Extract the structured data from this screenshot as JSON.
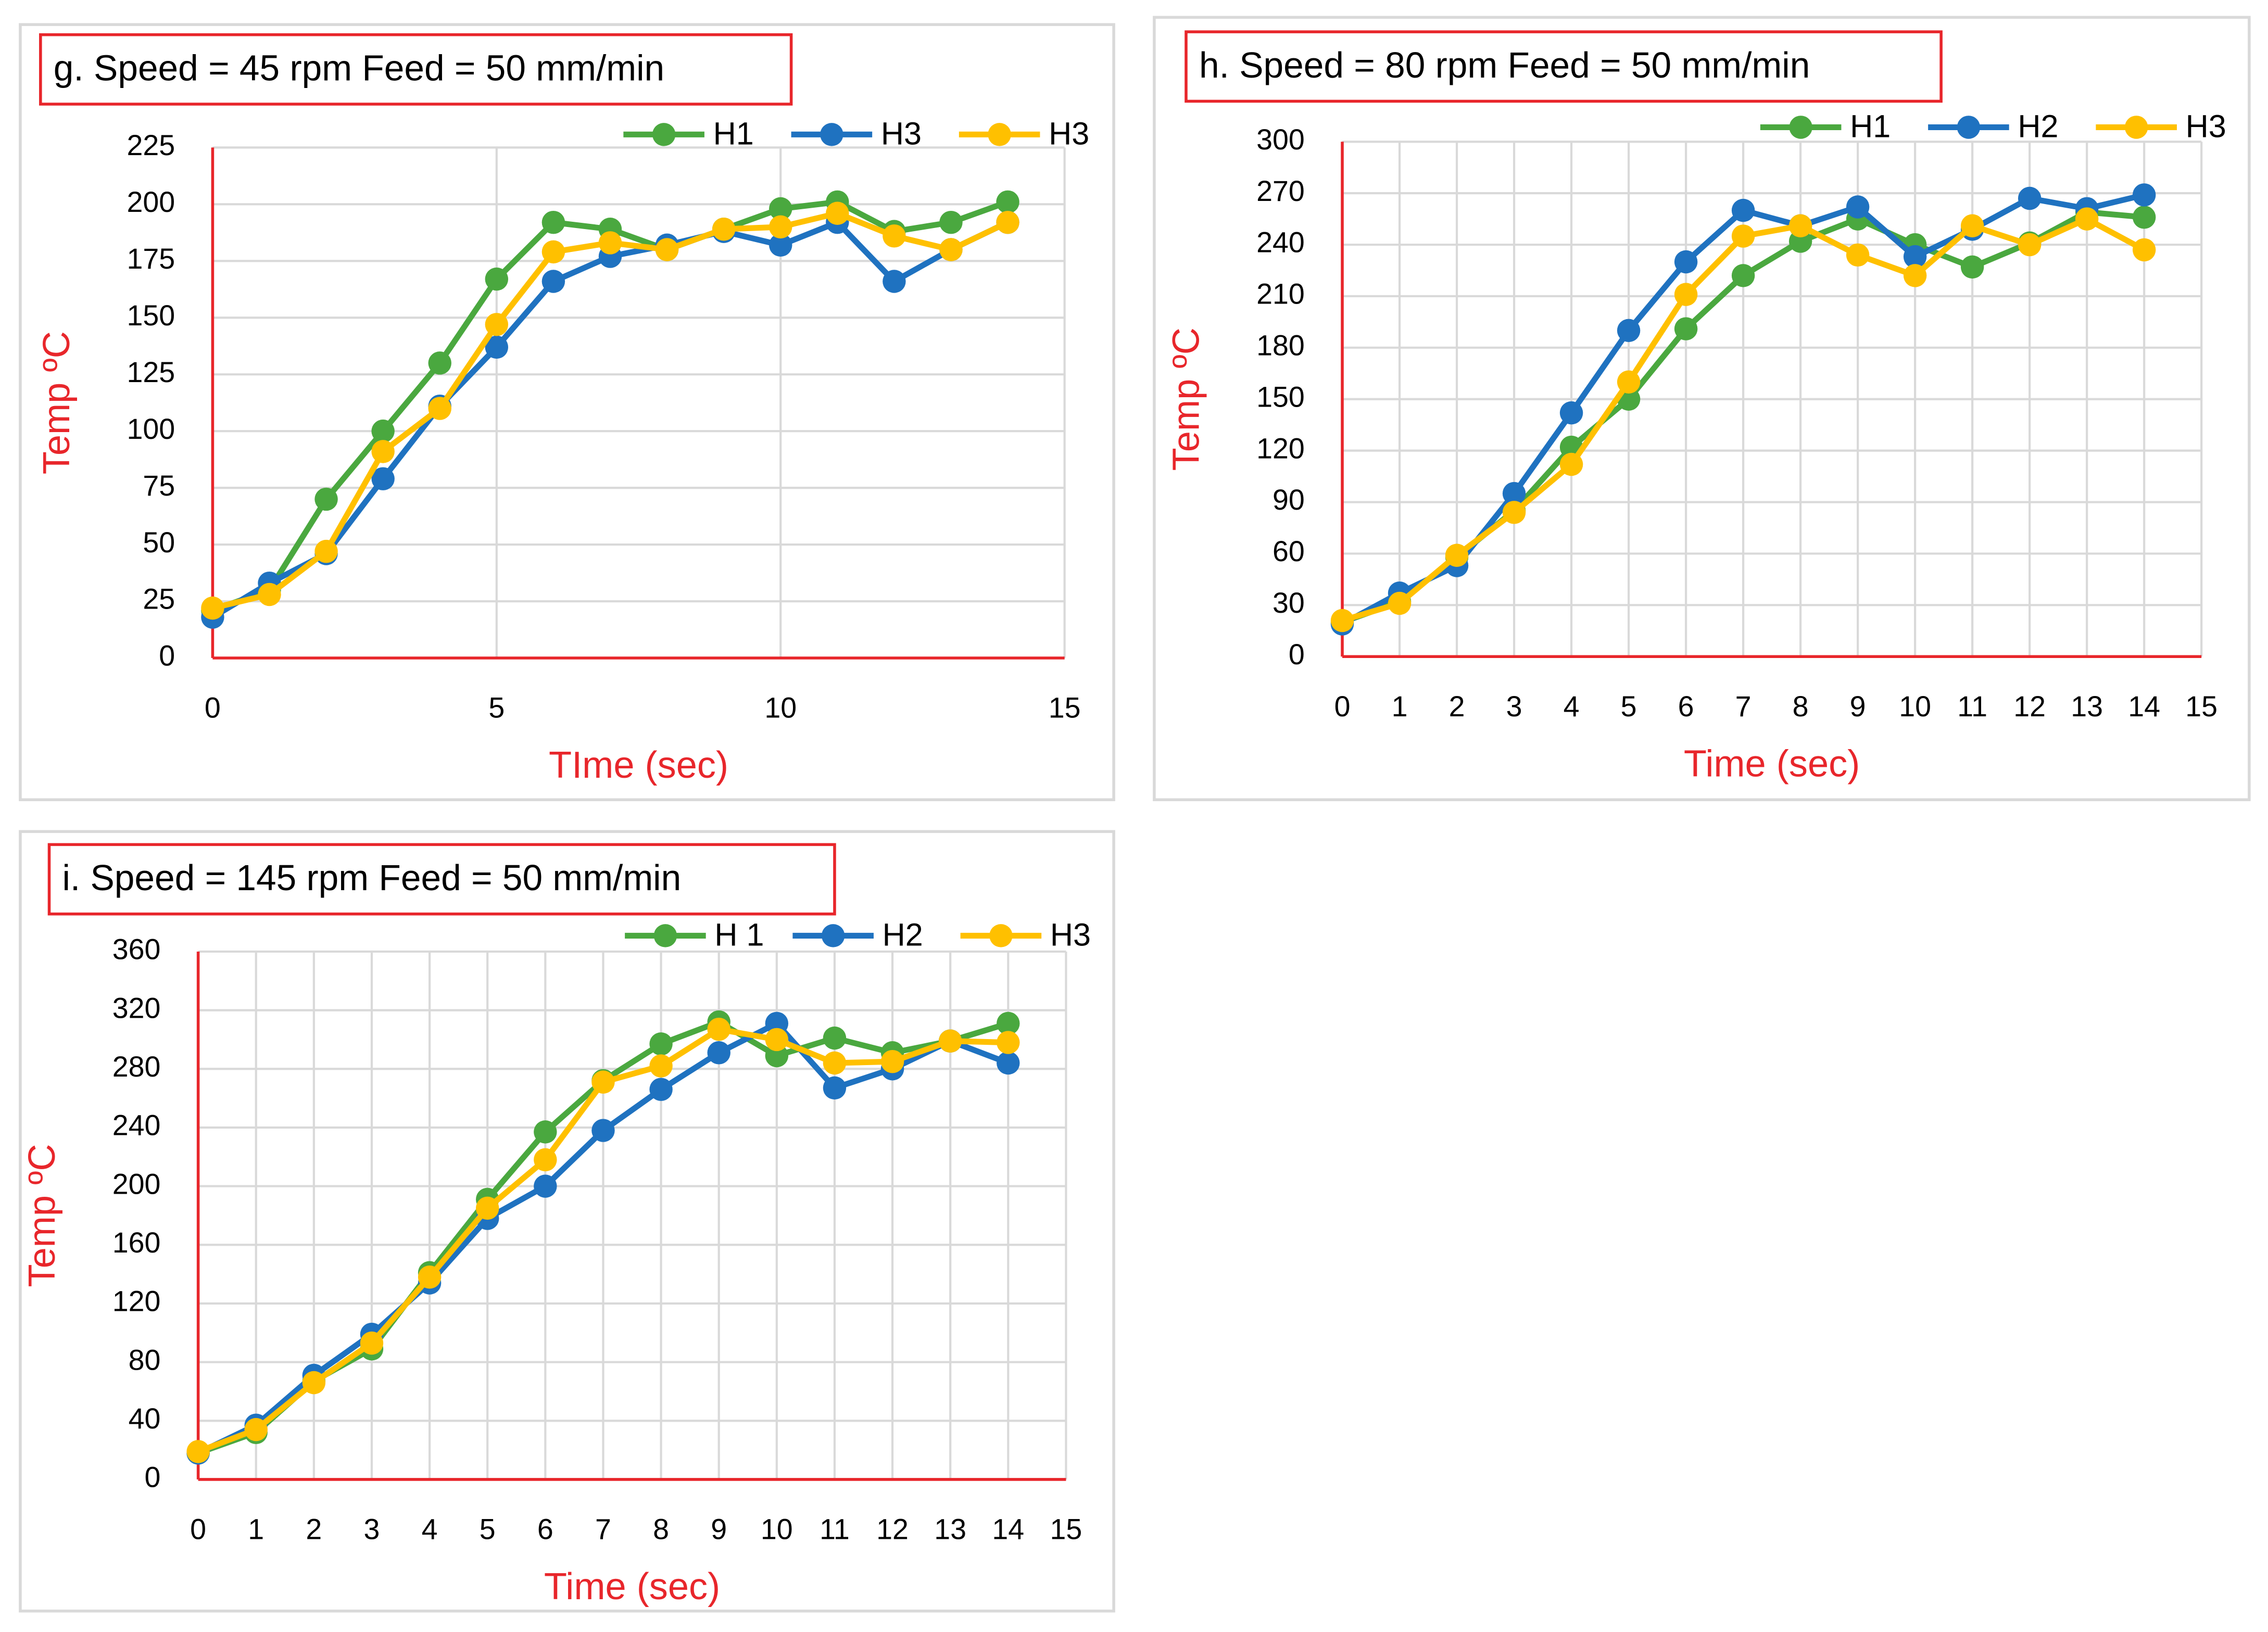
{
  "chart_data": [
    {
      "type": "line",
      "title": "g. Speed = 45 rpm    Feed = 50 mm/min",
      "xlabel": "TIme (sec)",
      "ylabel": "Temp ºC",
      "x": [
        0,
        1,
        2,
        3,
        4,
        5,
        6,
        7,
        8,
        9,
        10,
        11,
        12,
        13,
        14
      ],
      "xlim": [
        0,
        15
      ],
      "xticks": [
        0,
        5,
        10,
        15
      ],
      "ylim": [
        0,
        225
      ],
      "yticks": [
        0,
        25,
        50,
        75,
        100,
        125,
        150,
        175,
        200,
        225
      ],
      "grid": true,
      "legend": "top-right",
      "series": [
        {
          "name": "H1",
          "color": "#4aa83f",
          "values": [
            21,
            30,
            70,
            100,
            130,
            167,
            192,
            189,
            180,
            189,
            198,
            201,
            188,
            192,
            201
          ]
        },
        {
          "name": "H3",
          "color": "#1f72c0",
          "values": [
            18,
            33,
            46,
            79,
            111,
            137,
            166,
            177,
            182,
            188,
            182,
            192,
            166,
            180,
            192
          ]
        },
        {
          "name": "H3",
          "color": "#ffc000",
          "values": [
            22,
            28,
            47,
            91,
            110,
            147,
            179,
            183,
            180,
            189,
            190,
            196,
            186,
            180,
            192
          ]
        }
      ]
    },
    {
      "type": "line",
      "title": "h. Speed = 80 rpm    Feed = 50 mm/min",
      "xlabel": "Time (sec)",
      "ylabel": "Temp ºC",
      "x": [
        0,
        1,
        2,
        3,
        4,
        5,
        6,
        7,
        8,
        9,
        10,
        11,
        12,
        13,
        14
      ],
      "xlim": [
        0,
        15
      ],
      "xticks": [
        0,
        1,
        2,
        3,
        4,
        5,
        6,
        7,
        8,
        9,
        10,
        11,
        12,
        13,
        14,
        15
      ],
      "ylim": [
        0,
        300
      ],
      "yticks": [
        0,
        30,
        60,
        90,
        120,
        150,
        180,
        210,
        240,
        270,
        300
      ],
      "grid": true,
      "legend": "top-right",
      "series": [
        {
          "name": "H1",
          "color": "#4aa83f",
          "values": [
            20,
            32,
            58,
            85,
            122,
            150,
            191,
            222,
            242,
            255,
            240,
            227,
            241,
            259,
            256
          ]
        },
        {
          "name": "H2",
          "color": "#1f72c0",
          "values": [
            19,
            37,
            53,
            95,
            142,
            190,
            230,
            260,
            251,
            262,
            233,
            249,
            267,
            261,
            269
          ]
        },
        {
          "name": "H3",
          "color": "#ffc000",
          "values": [
            21,
            31,
            59,
            84,
            112,
            160,
            211,
            245,
            251,
            234,
            222,
            251,
            240,
            255,
            237
          ]
        }
      ]
    },
    {
      "type": "line",
      "title": "i. Speed = 145 rpm    Feed = 50 mm/min",
      "xlabel": "Time (sec)",
      "ylabel": "Temp ºC",
      "x": [
        0,
        1,
        2,
        3,
        4,
        5,
        6,
        7,
        8,
        9,
        10,
        11,
        12,
        13,
        14
      ],
      "xlim": [
        0,
        15
      ],
      "xticks": [
        0,
        1,
        2,
        3,
        4,
        5,
        6,
        7,
        8,
        9,
        10,
        11,
        12,
        13,
        14,
        15
      ],
      "ylim": [
        0,
        360
      ],
      "yticks": [
        0,
        40,
        80,
        120,
        160,
        200,
        240,
        280,
        320,
        360
      ],
      "grid": true,
      "legend": "top-right",
      "series": [
        {
          "name": "H 1",
          "color": "#4aa83f",
          "values": [
            18,
            32,
            67,
            89,
            141,
            191,
            237,
            272,
            297,
            312,
            289,
            301,
            291,
            299,
            311
          ]
        },
        {
          "name": "H2",
          "color": "#1f72c0",
          "values": [
            18,
            37,
            71,
            99,
            134,
            178,
            200,
            238,
            266,
            291,
            311,
            267,
            280,
            299,
            284
          ]
        },
        {
          "name": "H3",
          "color": "#ffc000",
          "values": [
            19,
            34,
            66,
            93,
            138,
            185,
            218,
            271,
            282,
            307,
            300,
            284,
            285,
            299,
            298
          ]
        }
      ]
    }
  ]
}
